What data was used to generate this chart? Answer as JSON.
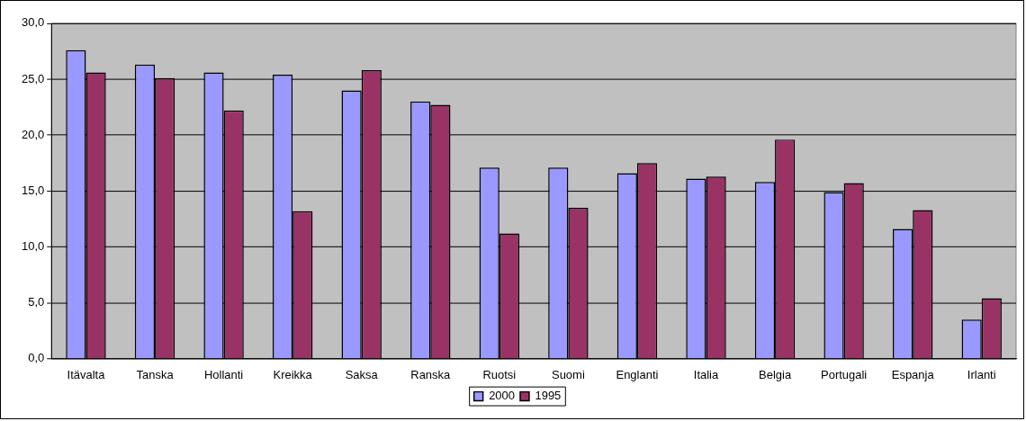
{
  "chart_data": {
    "type": "bar",
    "categories": [
      "Itävalta",
      "Tanska",
      "Hollanti",
      "Kreikka",
      "Saksa",
      "Ranska",
      "Ruotsi",
      "Suomi",
      "Englanti",
      "Italia",
      "Belgia",
      "Portugali",
      "Espanja",
      "Irlanti"
    ],
    "series": [
      {
        "name": "2000",
        "color": "#9999ff",
        "values": [
          27.6,
          26.3,
          25.6,
          25.4,
          24.0,
          23.0,
          17.1,
          17.1,
          16.6,
          16.1,
          15.8,
          14.9,
          11.6,
          3.5
        ]
      },
      {
        "name": "1995",
        "color": "#993366",
        "values": [
          25.6,
          25.1,
          22.2,
          13.2,
          25.8,
          22.7,
          11.2,
          13.5,
          17.5,
          16.3,
          19.6,
          15.7,
          13.3,
          5.4
        ]
      }
    ],
    "ylim": [
      0,
      30
    ],
    "yticks": [
      {
        "value": 0,
        "label": "0,0"
      },
      {
        "value": 5,
        "label": "5,0"
      },
      {
        "value": 10,
        "label": "10,0"
      },
      {
        "value": 15,
        "label": "15,0"
      },
      {
        "value": 20,
        "label": "20,0"
      },
      {
        "value": 25,
        "label": "25,0"
      },
      {
        "value": 30,
        "label": "30,0"
      }
    ],
    "grid": "y",
    "legend": "bottom"
  }
}
